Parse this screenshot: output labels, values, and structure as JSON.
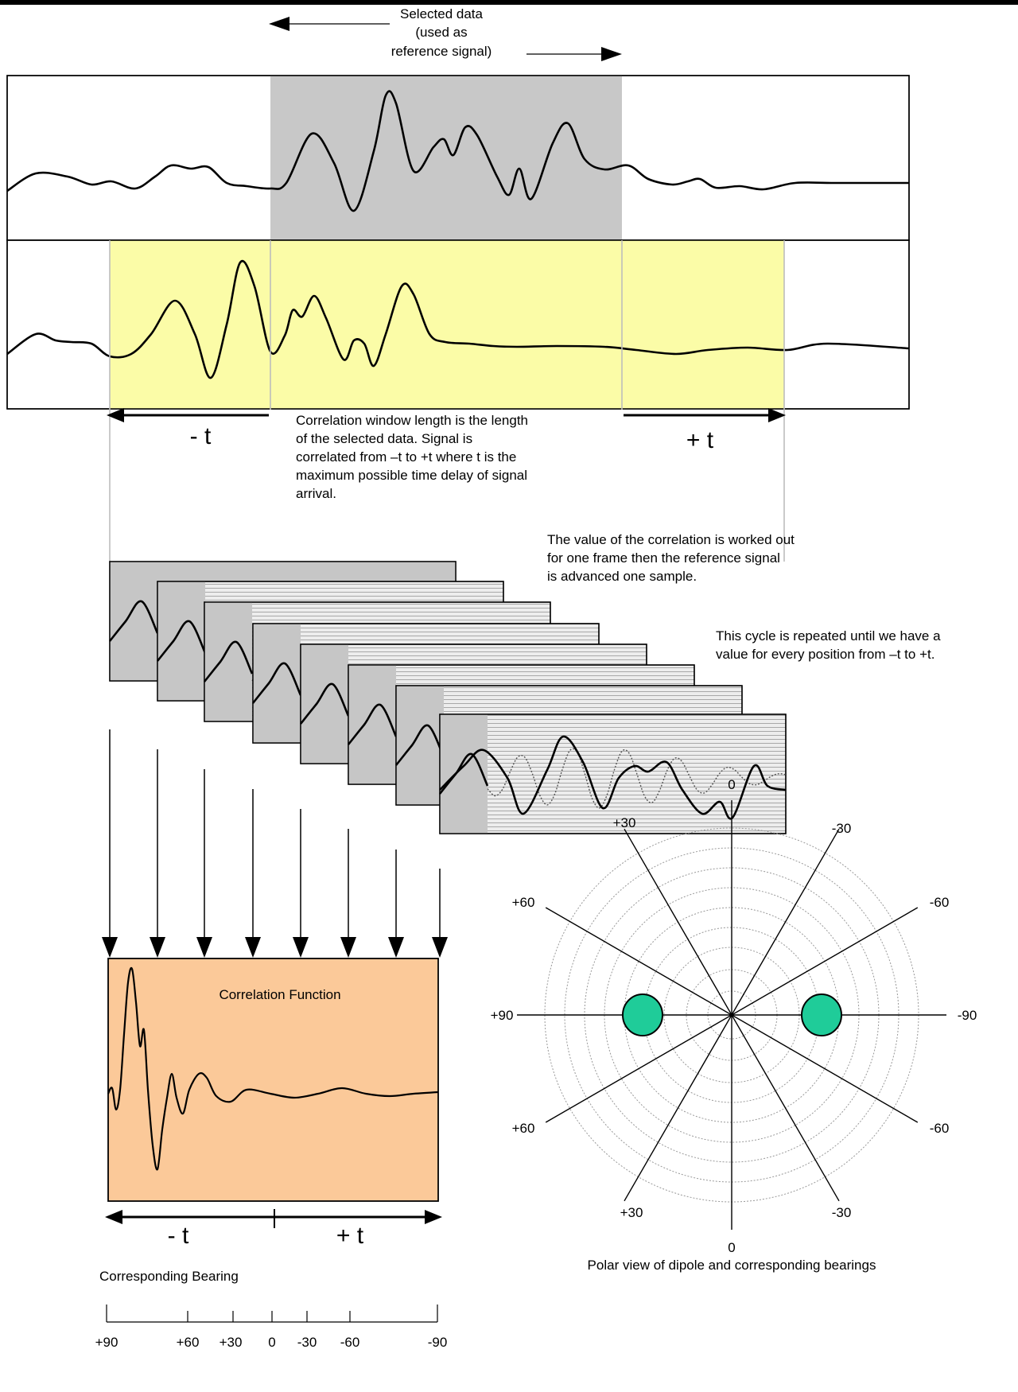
{
  "header": {
    "selected_data_lines": [
      "Selected data",
      "(used as",
      "reference signal)"
    ]
  },
  "window": {
    "minus_t": "- t",
    "plus_t": "+ t",
    "description_lines": [
      "Correlation window length is the length",
      "of    the    selected    data.   Signal   is",
      "correlated from –t  to +t  where t is the",
      "maximum possible time delay of signal",
      "arrival."
    ]
  },
  "frames_note": {
    "lines": [
      "The value of the correlation is worked out",
      "for one frame then the reference signal",
      "is advanced one sample."
    ]
  },
  "cycle_note": {
    "lines": [
      "This cycle is repeated until we have a",
      "value for every position from –t to +t."
    ]
  },
  "correlation": {
    "title": "Correlation Function",
    "minus_t": "- t",
    "plus_t": "+ t",
    "fill_color": "#fbc999"
  },
  "bearing_scale": {
    "title": "Corresponding Bearing",
    "ticks": [
      "+90",
      "+60",
      "+30",
      "0",
      "-30",
      "-60",
      "-90"
    ]
  },
  "polar": {
    "caption": "Polar view of dipole and corresponding bearings",
    "labels": {
      "top": "0",
      "bottom": "0",
      "upper_left_30": "+30",
      "upper_right_30": "-30",
      "upper_left_60": "+60",
      "upper_right_60": "-60",
      "left_90": "+90",
      "right_90": "-90",
      "lower_left_60": "+60",
      "lower_right_60": "-60",
      "lower_left_30": "+30",
      "lower_right_30": "-30"
    },
    "lobe_color": "#1fcc99"
  },
  "colors": {
    "selection_gray": "#c8c8c8",
    "window_yellow": "#fbfca7",
    "frame_gray": "#c6c6c6",
    "correlation_orange": "#fbc999",
    "dipole_green": "#1fcc99"
  }
}
